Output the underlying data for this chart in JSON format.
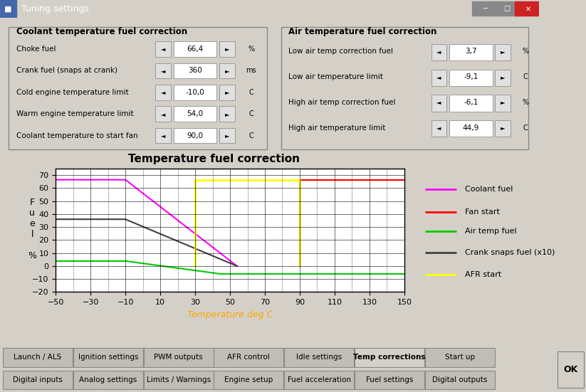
{
  "title": "Temperature fuel correction",
  "xlabel": "Temperature deg C",
  "xlim": [
    -50,
    150
  ],
  "ylim": [
    -20,
    75
  ],
  "xticks": [
    -50,
    -30,
    -10,
    10,
    30,
    50,
    70,
    90,
    110,
    130,
    150
  ],
  "yticks": [
    -20,
    -10,
    0,
    10,
    20,
    30,
    40,
    50,
    60,
    70
  ],
  "panel_bg": "#d4d0c8",
  "coolant_fuel": {
    "x": [
      -50,
      -10,
      54
    ],
    "y": [
      66.4,
      66.4,
      0
    ],
    "color": "#ff00ff",
    "label": "Coolant fuel",
    "lw": 1.5
  },
  "fan_start": {
    "x": [
      90,
      90,
      150
    ],
    "y": [
      0,
      66.4,
      66.4
    ],
    "color": "#ff0000",
    "label": "Fan start",
    "lw": 1.5
  },
  "air_temp_fuel": {
    "color": "#00cc00",
    "label": "Air temp fuel",
    "lw": 1.5
  },
  "crank_snaps_fuel": {
    "x": [
      -50,
      -10,
      54
    ],
    "y": [
      36,
      36,
      0
    ],
    "color": "#404040",
    "label": "Crank snaps fuel (x10)",
    "lw": 1.5
  },
  "afr_start": {
    "x": [
      30,
      30,
      90,
      90
    ],
    "y": [
      0,
      66.4,
      66.4,
      0
    ],
    "color": "#ffff00",
    "label": "AFR start",
    "lw": 2.0
  },
  "legend_colors": [
    "#ff00ff",
    "#ff0000",
    "#00cc00",
    "#404040",
    "#ffff00"
  ],
  "legend_labels": [
    "Coolant fuel",
    "Fan start",
    "Air temp fuel",
    "Crank snaps fuel (x10)",
    "AFR start"
  ],
  "title_fontsize": 11,
  "axis_fontsize": 9,
  "tick_fontsize": 8,
  "titlebar_text": "Tuning settings",
  "titlebar_bg": "#000080",
  "titlebar_fg": "#ffffff",
  "chart_title": "Temperature fuel correction",
  "panel_left_title": "Coolant temperature fuel correction",
  "panel_right_title": "Air temperature fuel correction",
  "rows_left": [
    [
      "Choke fuel",
      "66,4",
      "%"
    ],
    [
      "Crank fuel (snaps at crank)",
      "360",
      "ms"
    ],
    [
      "Cold engine temperature limit",
      "-10,0",
      "C"
    ],
    [
      "Warm engine temperature limit",
      "54,0",
      "C"
    ],
    [
      "Coolant temperature to start fan",
      "90,0",
      "C"
    ]
  ],
  "rows_right": [
    [
      "Low air temp correction fuel",
      "3,7",
      "%"
    ],
    [
      "Low air temperature limit",
      "-9,1",
      "C"
    ],
    [
      "High air temp correction fuel",
      "-6,1",
      "%"
    ],
    [
      "High air temperature limit",
      "44,9",
      "C"
    ]
  ],
  "tabs_row1": [
    "Launch / ALS",
    "Ignition settings",
    "PWM outputs",
    "AFR control",
    "Idle settings",
    "Temp corrections",
    "Start up"
  ],
  "tabs_row2": [
    "Digital inputs",
    "Analog settings",
    "Limits / Warnings",
    "Engine setup",
    "Fuel acceleration",
    "Fuel settings",
    "Digital outputs"
  ],
  "active_tab": "Temp corrections"
}
